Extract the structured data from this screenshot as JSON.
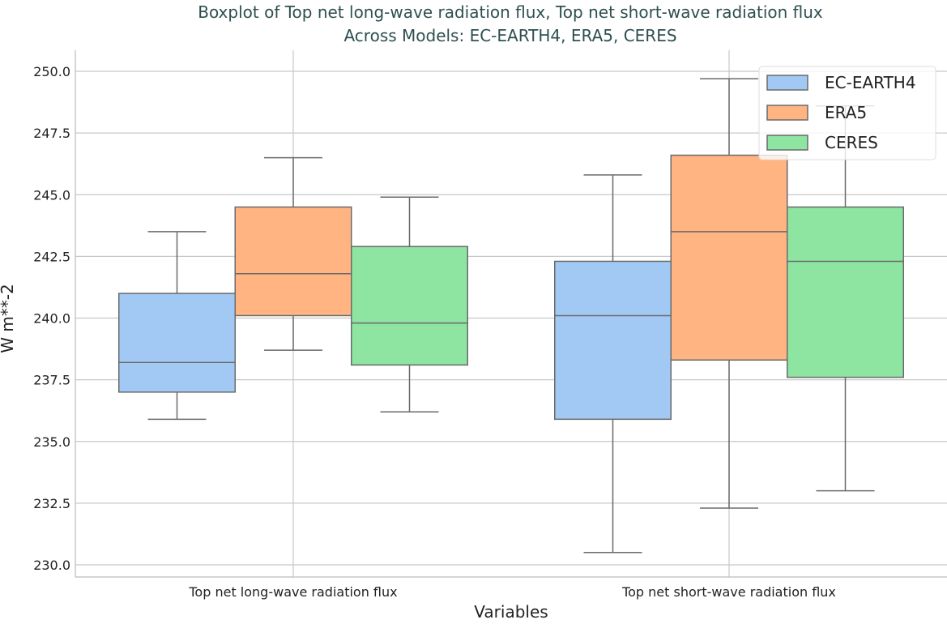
{
  "chart_data": {
    "type": "boxplot",
    "title": "Boxplot of Top net long-wave radiation flux, Top net short-wave radiation flux",
    "subtitle": "Across Models: EC-EARTH4, ERA5, CERES",
    "xlabel": "Variables",
    "ylabel": "W m**-2",
    "ylim": [
      229.5,
      250.5
    ],
    "yticks": [
      "230.0",
      "232.5",
      "235.0",
      "237.5",
      "240.0",
      "242.5",
      "245.0",
      "247.5",
      "250.0"
    ],
    "grid": true,
    "legend_position": "top-right",
    "categories": [
      "Top net long-wave radiation flux",
      "Top net short-wave radiation flux"
    ],
    "series": [
      {
        "name": "EC-EARTH4",
        "color": "#a1c9f4",
        "boxes": [
          {
            "whislo": 235.9,
            "q1": 237.0,
            "med": 238.2,
            "q3": 241.0,
            "whishi": 243.5
          },
          {
            "whislo": 230.5,
            "q1": 235.9,
            "med": 240.1,
            "q3": 242.3,
            "whishi": 245.8
          }
        ]
      },
      {
        "name": "ERA5",
        "color": "#ffb482",
        "boxes": [
          {
            "whislo": 238.7,
            "q1": 240.1,
            "med": 241.8,
            "q3": 244.5,
            "whishi": 246.5
          },
          {
            "whislo": 232.3,
            "q1": 238.3,
            "med": 243.5,
            "q3": 246.6,
            "whishi": 249.7
          }
        ]
      },
      {
        "name": "CERES",
        "color": "#8de5a1",
        "boxes": [
          {
            "whislo": 236.2,
            "q1": 238.1,
            "med": 239.8,
            "q3": 242.9,
            "whishi": 244.9
          },
          {
            "whislo": 233.0,
            "q1": 237.6,
            "med": 242.3,
            "q3": 244.5,
            "whishi": 248.6
          }
        ]
      }
    ]
  }
}
